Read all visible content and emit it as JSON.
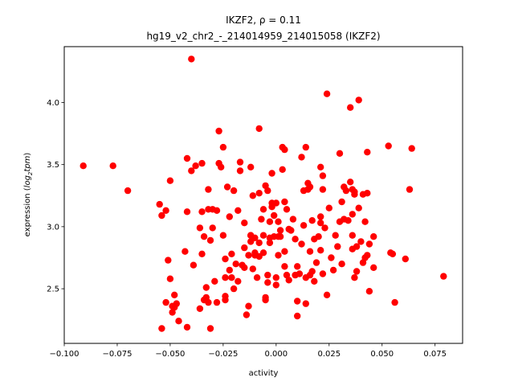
{
  "chart_data": {
    "type": "scatter",
    "title_line1": "IKZF2, ρ = 0.11",
    "title_line2": "hg19_v2_chr2_-_214014959_214015058 (IKZF2)",
    "xlabel": "activity",
    "ylabel_prefix": "expression (",
    "ylabel_math": "log",
    "ylabel_sub": "2",
    "ylabel_math2": "tpm",
    "ylabel_suffix": ")",
    "xlim": [
      -0.1,
      0.088
    ],
    "ylim": [
      2.06,
      4.45
    ],
    "xticks": [
      {
        "v": -0.1,
        "label": "−0.100"
      },
      {
        "v": -0.075,
        "label": "−0.075"
      },
      {
        "v": -0.05,
        "label": "−0.050"
      },
      {
        "v": -0.025,
        "label": "−0.025"
      },
      {
        "v": 0.0,
        "label": "0.000"
      },
      {
        "v": 0.025,
        "label": "0.025"
      },
      {
        "v": 0.05,
        "label": "0.050"
      },
      {
        "v": 0.075,
        "label": "0.075"
      }
    ],
    "yticks": [
      {
        "v": 2.5,
        "label": "2.5"
      },
      {
        "v": 3.0,
        "label": "3.0"
      },
      {
        "v": 3.5,
        "label": "3.5"
      },
      {
        "v": 4.0,
        "label": "4.0"
      }
    ],
    "color": "#ff0000",
    "points": [
      [
        -0.091,
        3.49
      ],
      [
        -0.077,
        3.49
      ],
      [
        -0.07,
        3.29
      ],
      [
        -0.055,
        3.18
      ],
      [
        -0.054,
        3.09
      ],
      [
        -0.054,
        2.18
      ],
      [
        -0.052,
        3.13
      ],
      [
        -0.052,
        2.39
      ],
      [
        -0.051,
        2.73
      ],
      [
        -0.05,
        3.37
      ],
      [
        -0.05,
        2.58
      ],
      [
        -0.049,
        2.36
      ],
      [
        -0.049,
        2.31
      ],
      [
        -0.048,
        2.35
      ],
      [
        -0.048,
        2.45
      ],
      [
        -0.047,
        2.38
      ],
      [
        -0.046,
        2.24
      ],
      [
        -0.043,
        2.8
      ],
      [
        -0.042,
        3.12
      ],
      [
        -0.042,
        3.55
      ],
      [
        -0.042,
        2.19
      ],
      [
        -0.04,
        4.35
      ],
      [
        -0.04,
        3.45
      ],
      [
        -0.039,
        2.69
      ],
      [
        -0.038,
        3.49
      ],
      [
        -0.036,
        2.34
      ],
      [
        -0.036,
        2.99
      ],
      [
        -0.035,
        3.12
      ],
      [
        -0.035,
        3.51
      ],
      [
        -0.035,
        2.78
      ],
      [
        -0.034,
        2.92
      ],
      [
        -0.034,
        2.41
      ],
      [
        -0.033,
        2.51
      ],
      [
        -0.033,
        2.43
      ],
      [
        -0.032,
        2.39
      ],
      [
        -0.032,
        3.3
      ],
      [
        -0.032,
        3.14
      ],
      [
        -0.031,
        2.89
      ],
      [
        -0.031,
        2.18
      ],
      [
        -0.03,
        2.99
      ],
      [
        -0.03,
        3.14
      ],
      [
        -0.029,
        2.56
      ],
      [
        -0.028,
        2.39
      ],
      [
        -0.028,
        3.13
      ],
      [
        -0.027,
        3.77
      ],
      [
        -0.027,
        3.51
      ],
      [
        -0.026,
        3.48
      ],
      [
        -0.025,
        3.64
      ],
      [
        -0.025,
        2.93
      ],
      [
        -0.024,
        2.74
      ],
      [
        -0.024,
        2.59
      ],
      [
        -0.024,
        2.44
      ],
      [
        -0.024,
        2.41
      ],
      [
        -0.023,
        3.32
      ],
      [
        -0.022,
        2.65
      ],
      [
        -0.022,
        3.08
      ],
      [
        -0.021,
        2.59
      ],
      [
        -0.021,
        2.78
      ],
      [
        -0.02,
        2.5
      ],
      [
        -0.02,
        3.29
      ],
      [
        -0.019,
        2.7
      ],
      [
        -0.018,
        2.56
      ],
      [
        -0.018,
        3.13
      ],
      [
        -0.017,
        3.45
      ],
      [
        -0.017,
        3.52
      ],
      [
        -0.016,
        2.69
      ],
      [
        -0.015,
        2.67
      ],
      [
        -0.015,
        2.83
      ],
      [
        -0.015,
        3.03
      ],
      [
        -0.014,
        2.29
      ],
      [
        -0.013,
        2.77
      ],
      [
        -0.013,
        2.36
      ],
      [
        -0.012,
        2.93
      ],
      [
        -0.012,
        2.88
      ],
      [
        -0.012,
        2.93
      ],
      [
        -0.012,
        3.48
      ],
      [
        -0.011,
        3.25
      ],
      [
        -0.011,
        2.66
      ],
      [
        -0.01,
        2.91
      ],
      [
        -0.01,
        2.77
      ],
      [
        -0.01,
        2.79
      ],
      [
        -0.009,
        2.59
      ],
      [
        -0.008,
        2.76
      ],
      [
        -0.008,
        2.87
      ],
      [
        -0.008,
        3.79
      ],
      [
        -0.008,
        3.27
      ],
      [
        -0.007,
        3.06
      ],
      [
        -0.006,
        2.79
      ],
      [
        -0.006,
        3.14
      ],
      [
        -0.006,
        2.93
      ],
      [
        -0.005,
        3.33
      ],
      [
        -0.005,
        2.43
      ],
      [
        -0.005,
        2.41
      ],
      [
        -0.004,
        3.29
      ],
      [
        -0.004,
        2.61
      ],
      [
        -0.004,
        2.55
      ],
      [
        -0.003,
        2.87
      ],
      [
        -0.003,
        2.91
      ],
      [
        -0.003,
        3.04
      ],
      [
        -0.002,
        3.43
      ],
      [
        -0.002,
        3.19
      ],
      [
        -0.002,
        3.16
      ],
      [
        -0.001,
        2.92
      ],
      [
        -0.001,
        3.09
      ],
      [
        0.0,
        3.19
      ],
      [
        0.0,
        2.59
      ],
      [
        0.0,
        2.53
      ],
      [
        0.001,
        2.92
      ],
      [
        0.001,
        2.77
      ],
      [
        0.001,
        3.04
      ],
      [
        0.002,
        2.97
      ],
      [
        0.002,
        2.92
      ],
      [
        0.003,
        3.46
      ],
      [
        0.003,
        3.64
      ],
      [
        0.004,
        2.8
      ],
      [
        0.004,
        2.68
      ],
      [
        0.004,
        3.62
      ],
      [
        0.004,
        3.2
      ],
      [
        0.005,
        3.14
      ],
      [
        0.005,
        2.61
      ],
      [
        0.006,
        2.98
      ],
      [
        0.006,
        2.57
      ],
      [
        0.007,
        2.97
      ],
      [
        0.008,
        3.06
      ],
      [
        0.009,
        2.9
      ],
      [
        0.009,
        2.61
      ],
      [
        0.01,
        2.68
      ],
      [
        0.01,
        2.28
      ],
      [
        0.01,
        2.4
      ],
      [
        0.011,
        2.62
      ],
      [
        0.012,
        2.86
      ],
      [
        0.012,
        3.56
      ],
      [
        0.013,
        3.01
      ],
      [
        0.013,
        3.29
      ],
      [
        0.014,
        3.64
      ],
      [
        0.014,
        2.59
      ],
      [
        0.014,
        2.38
      ],
      [
        0.015,
        3.35
      ],
      [
        0.015,
        3.3
      ],
      [
        0.016,
        2.8
      ],
      [
        0.016,
        3.32
      ],
      [
        0.016,
        2.61
      ],
      [
        0.017,
        2.64
      ],
      [
        0.017,
        3.05
      ],
      [
        0.018,
        2.56
      ],
      [
        0.018,
        2.9
      ],
      [
        0.019,
        2.71
      ],
      [
        0.02,
        2.92
      ],
      [
        0.021,
        3.48
      ],
      [
        0.021,
        3.08
      ],
      [
        0.021,
        2.81
      ],
      [
        0.021,
        3.03
      ],
      [
        0.022,
        3.3
      ],
      [
        0.022,
        2.62
      ],
      [
        0.022,
        3.41
      ],
      [
        0.023,
        2.99
      ],
      [
        0.024,
        4.07
      ],
      [
        0.024,
        2.45
      ],
      [
        0.025,
        3.15
      ],
      [
        0.026,
        2.75
      ],
      [
        0.027,
        2.65
      ],
      [
        0.028,
        2.93
      ],
      [
        0.029,
        2.84
      ],
      [
        0.03,
        3.59
      ],
      [
        0.03,
        3.04
      ],
      [
        0.031,
        3.2
      ],
      [
        0.031,
        2.7
      ],
      [
        0.032,
        3.32
      ],
      [
        0.032,
        3.06
      ],
      [
        0.033,
        3.29
      ],
      [
        0.034,
        3.05
      ],
      [
        0.035,
        3.96
      ],
      [
        0.035,
        3.36
      ],
      [
        0.036,
        3.3
      ],
      [
        0.036,
        2.93
      ],
      [
        0.036,
        3.1
      ],
      [
        0.036,
        2.82
      ],
      [
        0.037,
        3.26
      ],
      [
        0.037,
        3.28
      ],
      [
        0.037,
        2.59
      ],
      [
        0.038,
        2.84
      ],
      [
        0.038,
        2.64
      ],
      [
        0.039,
        4.02
      ],
      [
        0.039,
        3.15
      ],
      [
        0.04,
        2.88
      ],
      [
        0.041,
        2.71
      ],
      [
        0.041,
        3.26
      ],
      [
        0.042,
        3.04
      ],
      [
        0.042,
        2.75
      ],
      [
        0.043,
        3.6
      ],
      [
        0.043,
        2.77
      ],
      [
        0.043,
        3.27
      ],
      [
        0.044,
        2.86
      ],
      [
        0.044,
        2.48
      ],
      [
        0.046,
        2.92
      ],
      [
        0.046,
        2.67
      ],
      [
        0.053,
        3.65
      ],
      [
        0.054,
        2.79
      ],
      [
        0.055,
        2.78
      ],
      [
        0.056,
        2.39
      ],
      [
        0.061,
        2.74
      ],
      [
        0.063,
        3.3
      ],
      [
        0.064,
        3.63
      ],
      [
        0.079,
        2.6
      ]
    ]
  }
}
